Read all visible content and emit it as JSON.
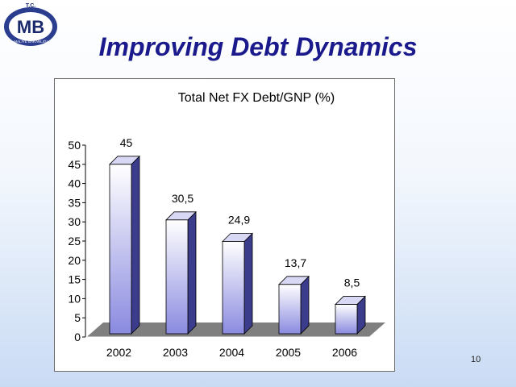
{
  "slide": {
    "title": "Improving Debt Dynamics",
    "page_number": "10"
  },
  "logo": {
    "top_text": "T.C.",
    "letters": "MB",
    "ring_text": "MALİYE BAKANLIĞI",
    "colors": {
      "navy": "#1a2a6c",
      "ring": "#2a3d8f",
      "white": "#ffffff"
    }
  },
  "colors": {
    "title": "#1a1a8c",
    "bar_top": "#ffffff",
    "bar_bottom": "#8a8ae0",
    "bar_side": "#3c3c8c",
    "floor": "#7f7f7f",
    "axis": "#000000"
  },
  "chart_data": {
    "type": "bar",
    "title": "Total Net FX Debt/GNP (%)",
    "xlabel": "",
    "ylabel": "",
    "categories": [
      "2002",
      "2003",
      "2004",
      "2005",
      "2006"
    ],
    "values": [
      45,
      30.5,
      24.9,
      13.7,
      8.5
    ],
    "data_labels": [
      "45",
      "30,5",
      "24,9",
      "13,7",
      "8,5"
    ],
    "ylim": [
      0,
      50
    ],
    "yticks": [
      "0",
      "5",
      "10",
      "15",
      "20",
      "25",
      "30",
      "35",
      "40",
      "45",
      "50"
    ],
    "grid": false,
    "legend": "none",
    "style": "3d-column"
  }
}
